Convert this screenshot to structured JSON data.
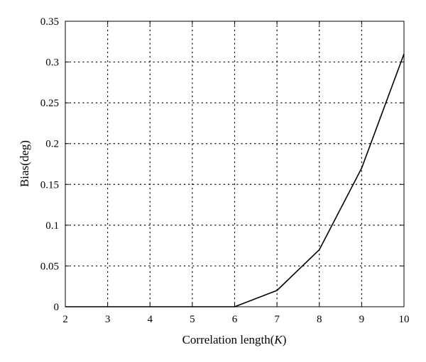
{
  "chart_data": {
    "type": "line",
    "title": "",
    "xlabel": "Correlation length(",
    "xlabel_var": "K",
    "xlabel_suffix": ")",
    "ylabel": "Bias(deg)",
    "xlim": [
      2,
      10
    ],
    "ylim": [
      0,
      0.35
    ],
    "x_ticks": [
      "2",
      "3",
      "4",
      "5",
      "6",
      "7",
      "8",
      "9",
      "10"
    ],
    "y_ticks": [
      "0",
      "0.05",
      "0.1",
      "0.15",
      "0.2",
      "0.25",
      "0.3",
      "0.35"
    ],
    "grid": true,
    "series": [
      {
        "color": "#000000",
        "x": [
          2,
          3,
          4,
          5,
          6,
          7,
          8,
          9,
          10
        ],
        "y": [
          0,
          0,
          0,
          0,
          0,
          0.02,
          0.07,
          0.17,
          0.31
        ]
      }
    ]
  }
}
